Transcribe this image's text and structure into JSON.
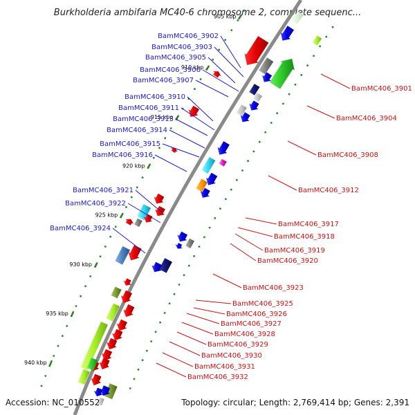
{
  "title": "Burkholderia ambifaria MC40-6 chromosome 2, complete sequenc...",
  "footer": {
    "accession": "Accession: NC_010552",
    "topology": "Topology: circular; Length: 2,769,414 bp; Genes: 2,391"
  },
  "colors": {
    "backbone": "#8a8a8a",
    "left_label": "#1a1acc",
    "right_label": "#cc1111",
    "tick_major": "#2e7d1e",
    "tick_minor": "#1d8a2e"
  },
  "ticks": [
    {
      "label": "905 kbp"
    },
    {
      "label": "910 kbp"
    },
    {
      "label": "915 kbp"
    },
    {
      "label": "920 kbp"
    },
    {
      "label": "925 kbp"
    },
    {
      "label": "930 kbp"
    },
    {
      "label": "935 kbp"
    },
    {
      "label": "940 kbp"
    }
  ],
  "left_labels": [
    {
      "text": "BamMC406_3902"
    },
    {
      "text": "BamMC406_3903"
    },
    {
      "text": "BamMC406_3905"
    },
    {
      "text": "BamMC406_3906"
    },
    {
      "text": "BamMC406_3907"
    },
    {
      "text": "BamMC406_3910"
    },
    {
      "text": "BamMC406_3911"
    },
    {
      "text": "BamMC406_3913"
    },
    {
      "text": "BamMC406_3914"
    },
    {
      "text": "BamMC406_3915"
    },
    {
      "text": "BamMC406_3916"
    },
    {
      "text": "BamMC406_3921"
    },
    {
      "text": "BamMC406_3922"
    },
    {
      "text": "BamMC406_3924"
    }
  ],
  "right_labels": [
    {
      "text": "BamMC406_3901"
    },
    {
      "text": "BamMC406_3904"
    },
    {
      "text": "BamMC406_3908"
    },
    {
      "text": "BamMC406_3912"
    },
    {
      "text": "BamMC406_3917"
    },
    {
      "text": "BamMC406_3918"
    },
    {
      "text": "BamMC406_3919"
    },
    {
      "text": "BamMC406_3920"
    },
    {
      "text": "BamMC406_3923"
    },
    {
      "text": "BamMC406_3925"
    },
    {
      "text": "BamMC406_3926"
    },
    {
      "text": "BamMC406_3927"
    },
    {
      "text": "BamMC406_3928"
    },
    {
      "text": "BamMC406_3929"
    },
    {
      "text": "BamMC406_3930"
    },
    {
      "text": "BamMC406_3931"
    },
    {
      "text": "BamMC406_3932"
    }
  ]
}
